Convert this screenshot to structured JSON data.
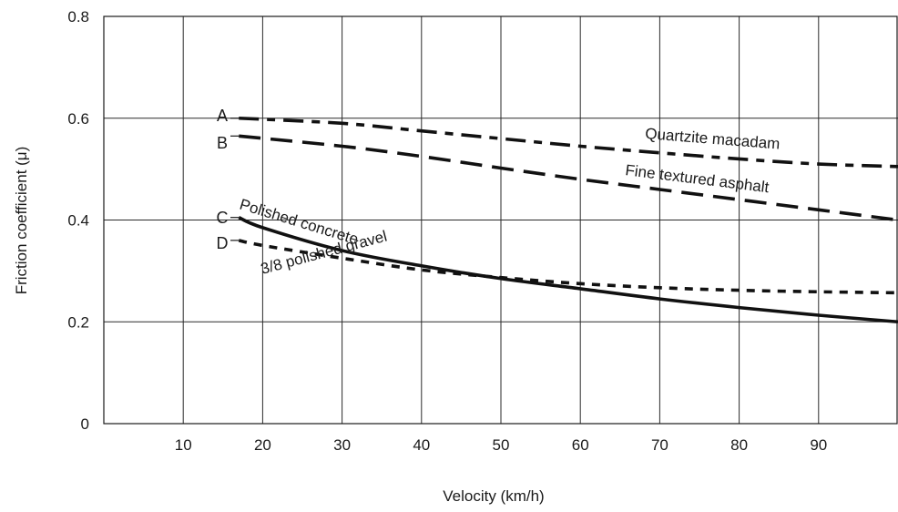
{
  "chart_data": {
    "type": "line",
    "xlabel": "Velocity (km/h)",
    "ylabel": "Friction coefficient (μ)",
    "xlim": [
      0,
      100
    ],
    "ylim": [
      0,
      0.8
    ],
    "x_ticks": [
      10,
      20,
      30,
      40,
      50,
      60,
      70,
      80,
      90
    ],
    "y_ticks": [
      0,
      0.2,
      0.4,
      0.6,
      0.8
    ],
    "y_tick_labels": [
      "0",
      "0.2",
      "0.4",
      "0.6",
      "0.8"
    ],
    "grid": true,
    "series": [
      {
        "letter": "A",
        "name": "Quartzite macadam",
        "line_style": "dash-dot",
        "x": [
          17,
          30,
          40,
          50,
          60,
          70,
          80,
          90,
          100
        ],
        "y": [
          0.6,
          0.59,
          0.575,
          0.56,
          0.545,
          0.532,
          0.52,
          0.51,
          0.505
        ]
      },
      {
        "letter": "B",
        "name": "Fine textured asphalt",
        "line_style": "dashed",
        "x": [
          17,
          30,
          40,
          50,
          60,
          70,
          80,
          90,
          100
        ],
        "y": [
          0.565,
          0.545,
          0.525,
          0.502,
          0.48,
          0.46,
          0.44,
          0.42,
          0.4
        ]
      },
      {
        "letter": "C",
        "name": "Polished concrete",
        "line_style": "solid",
        "x": [
          17,
          20,
          30,
          40,
          50,
          60,
          70,
          80,
          90,
          100
        ],
        "y": [
          0.405,
          0.385,
          0.34,
          0.31,
          0.285,
          0.265,
          0.245,
          0.228,
          0.213,
          0.2
        ]
      },
      {
        "letter": "D",
        "name": "3/8 polished gravel",
        "line_style": "dotted",
        "x": [
          17,
          20,
          30,
          40,
          50,
          60,
          70,
          80,
          90,
          100
        ],
        "y": [
          0.36,
          0.35,
          0.325,
          0.302,
          0.287,
          0.275,
          0.267,
          0.262,
          0.259,
          0.257
        ]
      }
    ]
  }
}
